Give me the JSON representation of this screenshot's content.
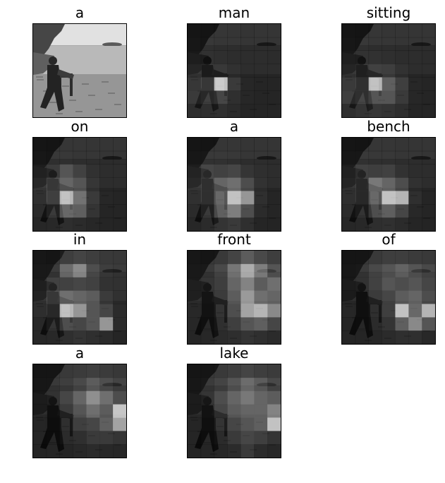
{
  "caption_words": [
    "a",
    "man",
    "sitting",
    "on",
    "a",
    "bench",
    "in",
    "front",
    "of",
    "a",
    "lake"
  ],
  "panels": [
    {
      "word": "a",
      "kind": "original"
    },
    {
      "word": "man",
      "kind": "attention",
      "attention": [
        [
          0.1,
          0.08,
          0.06,
          0.05,
          0.04,
          0.05,
          0.05
        ],
        [
          0.12,
          0.1,
          0.08,
          0.06,
          0.05,
          0.05,
          0.05
        ],
        [
          0.14,
          0.12,
          0.1,
          0.08,
          0.06,
          0.06,
          0.05
        ],
        [
          0.22,
          0.25,
          0.22,
          0.12,
          0.08,
          0.07,
          0.06
        ],
        [
          0.28,
          0.45,
          0.98,
          0.3,
          0.1,
          0.08,
          0.06
        ],
        [
          0.3,
          0.35,
          0.4,
          0.2,
          0.1,
          0.08,
          0.06
        ],
        [
          0.18,
          0.2,
          0.22,
          0.15,
          0.08,
          0.07,
          0.06
        ]
      ]
    },
    {
      "word": "sitting",
      "kind": "attention",
      "attention": [
        [
          0.1,
          0.08,
          0.06,
          0.05,
          0.05,
          0.05,
          0.05
        ],
        [
          0.12,
          0.1,
          0.08,
          0.06,
          0.05,
          0.05,
          0.05
        ],
        [
          0.15,
          0.14,
          0.12,
          0.1,
          0.06,
          0.06,
          0.05
        ],
        [
          0.22,
          0.28,
          0.3,
          0.28,
          0.15,
          0.08,
          0.06
        ],
        [
          0.3,
          0.4,
          0.95,
          0.55,
          0.35,
          0.1,
          0.07
        ],
        [
          0.35,
          0.4,
          0.5,
          0.5,
          0.3,
          0.1,
          0.07
        ],
        [
          0.2,
          0.25,
          0.28,
          0.25,
          0.18,
          0.08,
          0.06
        ]
      ]
    },
    {
      "word": "on",
      "kind": "attention",
      "attention": [
        [
          0.1,
          0.08,
          0.07,
          0.06,
          0.05,
          0.05,
          0.05
        ],
        [
          0.12,
          0.1,
          0.1,
          0.08,
          0.06,
          0.05,
          0.05
        ],
        [
          0.18,
          0.25,
          0.45,
          0.3,
          0.12,
          0.07,
          0.06
        ],
        [
          0.25,
          0.45,
          0.55,
          0.45,
          0.2,
          0.08,
          0.06
        ],
        [
          0.22,
          0.5,
          0.95,
          0.65,
          0.3,
          0.1,
          0.06
        ],
        [
          0.15,
          0.3,
          0.6,
          0.55,
          0.25,
          0.08,
          0.06
        ],
        [
          0.1,
          0.12,
          0.18,
          0.15,
          0.1,
          0.06,
          0.05
        ]
      ]
    },
    {
      "word": "a",
      "kind": "attention",
      "attention": [
        [
          0.1,
          0.08,
          0.07,
          0.06,
          0.05,
          0.05,
          0.05
        ],
        [
          0.12,
          0.12,
          0.12,
          0.1,
          0.07,
          0.06,
          0.05
        ],
        [
          0.2,
          0.35,
          0.3,
          0.35,
          0.18,
          0.1,
          0.06
        ],
        [
          0.25,
          0.4,
          0.55,
          0.6,
          0.4,
          0.15,
          0.07
        ],
        [
          0.22,
          0.4,
          0.6,
          0.95,
          0.8,
          0.2,
          0.07
        ],
        [
          0.15,
          0.3,
          0.55,
          0.7,
          0.45,
          0.15,
          0.06
        ],
        [
          0.1,
          0.15,
          0.25,
          0.3,
          0.2,
          0.08,
          0.05
        ]
      ]
    },
    {
      "word": "bench",
      "kind": "attention",
      "attention": [
        [
          0.1,
          0.08,
          0.07,
          0.06,
          0.05,
          0.05,
          0.05
        ],
        [
          0.12,
          0.12,
          0.1,
          0.1,
          0.07,
          0.06,
          0.05
        ],
        [
          0.18,
          0.3,
          0.28,
          0.3,
          0.15,
          0.08,
          0.06
        ],
        [
          0.22,
          0.35,
          0.65,
          0.55,
          0.4,
          0.12,
          0.07
        ],
        [
          0.2,
          0.35,
          0.6,
          0.95,
          0.9,
          0.2,
          0.07
        ],
        [
          0.15,
          0.25,
          0.45,
          0.55,
          0.4,
          0.12,
          0.06
        ],
        [
          0.1,
          0.12,
          0.18,
          0.22,
          0.15,
          0.07,
          0.05
        ]
      ]
    },
    {
      "word": "in",
      "kind": "attention",
      "attention": [
        [
          0.12,
          0.1,
          0.18,
          0.25,
          0.2,
          0.12,
          0.1
        ],
        [
          0.15,
          0.15,
          0.55,
          0.7,
          0.35,
          0.2,
          0.15
        ],
        [
          0.15,
          0.3,
          0.3,
          0.35,
          0.3,
          0.15,
          0.12
        ],
        [
          0.2,
          0.45,
          0.6,
          0.55,
          0.5,
          0.25,
          0.12
        ],
        [
          0.18,
          0.35,
          0.95,
          0.8,
          0.5,
          0.4,
          0.15
        ],
        [
          0.12,
          0.25,
          0.45,
          0.4,
          0.5,
          0.8,
          0.15
        ],
        [
          0.1,
          0.12,
          0.2,
          0.25,
          0.2,
          0.15,
          0.08
        ]
      ]
    },
    {
      "word": "front",
      "kind": "attention",
      "attention": [
        [
          0.12,
          0.1,
          0.12,
          0.25,
          0.45,
          0.3,
          0.2
        ],
        [
          0.15,
          0.15,
          0.3,
          0.6,
          0.85,
          0.65,
          0.4
        ],
        [
          0.15,
          0.18,
          0.28,
          0.55,
          0.7,
          0.5,
          0.6
        ],
        [
          0.15,
          0.18,
          0.25,
          0.5,
          0.8,
          0.6,
          0.55
        ],
        [
          0.12,
          0.15,
          0.25,
          0.45,
          0.85,
          0.9,
          0.75
        ],
        [
          0.1,
          0.12,
          0.2,
          0.35,
          0.5,
          0.55,
          0.4
        ],
        [
          0.08,
          0.1,
          0.15,
          0.18,
          0.25,
          0.2,
          0.15
        ]
      ]
    },
    {
      "word": "of",
      "kind": "attention",
      "attention": [
        [
          0.1,
          0.1,
          0.12,
          0.18,
          0.2,
          0.15,
          0.12
        ],
        [
          0.12,
          0.15,
          0.3,
          0.4,
          0.5,
          0.4,
          0.3
        ],
        [
          0.12,
          0.15,
          0.3,
          0.45,
          0.4,
          0.45,
          0.35
        ],
        [
          0.1,
          0.12,
          0.25,
          0.35,
          0.5,
          0.55,
          0.4
        ],
        [
          0.1,
          0.12,
          0.2,
          0.35,
          0.95,
          0.6,
          0.9
        ],
        [
          0.08,
          0.1,
          0.15,
          0.25,
          0.55,
          0.75,
          0.5
        ],
        [
          0.06,
          0.08,
          0.1,
          0.15,
          0.2,
          0.2,
          0.12
        ]
      ]
    },
    {
      "word": "a",
      "kind": "attention",
      "attention": [
        [
          0.1,
          0.1,
          0.12,
          0.15,
          0.2,
          0.15,
          0.1
        ],
        [
          0.12,
          0.12,
          0.2,
          0.3,
          0.45,
          0.35,
          0.25
        ],
        [
          0.12,
          0.15,
          0.35,
          0.55,
          0.75,
          0.6,
          0.4
        ],
        [
          0.1,
          0.12,
          0.25,
          0.45,
          0.6,
          0.5,
          0.95
        ],
        [
          0.08,
          0.1,
          0.2,
          0.35,
          0.4,
          0.55,
          0.85
        ],
        [
          0.06,
          0.08,
          0.15,
          0.2,
          0.3,
          0.3,
          0.25
        ],
        [
          0.05,
          0.06,
          0.08,
          0.12,
          0.15,
          0.12,
          0.1
        ]
      ]
    },
    {
      "word": "lake",
      "kind": "attention",
      "attention": [
        [
          0.1,
          0.1,
          0.12,
          0.18,
          0.25,
          0.2,
          0.15
        ],
        [
          0.12,
          0.15,
          0.25,
          0.4,
          0.55,
          0.45,
          0.3
        ],
        [
          0.12,
          0.18,
          0.4,
          0.55,
          0.65,
          0.55,
          0.5
        ],
        [
          0.1,
          0.15,
          0.35,
          0.5,
          0.55,
          0.55,
          0.7
        ],
        [
          0.08,
          0.12,
          0.25,
          0.4,
          0.5,
          0.55,
          0.95
        ],
        [
          0.06,
          0.1,
          0.15,
          0.3,
          0.4,
          0.35,
          0.25
        ],
        [
          0.05,
          0.06,
          0.1,
          0.15,
          0.3,
          0.15,
          0.1
        ]
      ]
    }
  ]
}
